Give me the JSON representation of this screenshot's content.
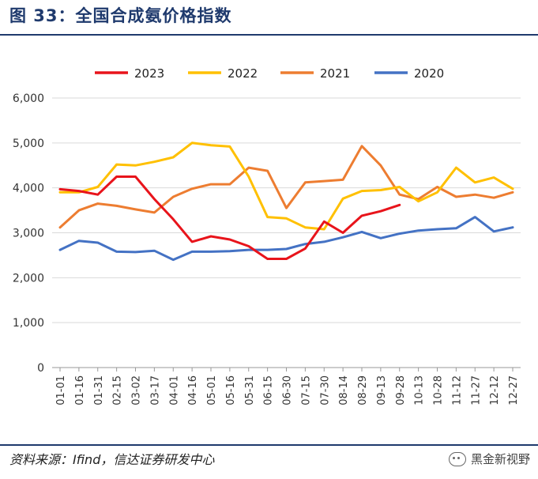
{
  "header": {
    "title": "图 33：全国合成氨价格指数"
  },
  "footer": {
    "source": "资料来源：Ifind，信达证券研发中心",
    "watermark": "黑金新视野"
  },
  "chart_data": {
    "type": "line",
    "title": "",
    "xlabel": "",
    "ylabel": "",
    "ylim": [
      0,
      6000
    ],
    "yticks": [
      0,
      1000,
      2000,
      3000,
      4000,
      5000,
      6000
    ],
    "ytick_labels": [
      "0",
      "1,000",
      "2,000",
      "3,000",
      "4,000",
      "5,000",
      "6,000"
    ],
    "categories": [
      "01-01",
      "01-16",
      "01-31",
      "02-15",
      "03-02",
      "03-17",
      "04-01",
      "04-16",
      "05-01",
      "05-16",
      "05-31",
      "06-15",
      "06-30",
      "07-15",
      "07-30",
      "08-14",
      "08-29",
      "09-13",
      "09-28",
      "10-13",
      "10-28",
      "11-12",
      "11-27",
      "12-12",
      "12-27"
    ],
    "legend_position": "top",
    "grid": "horizontal",
    "series": [
      {
        "name": "2023",
        "color": "#e8141b",
        "values": [
          3970,
          3930,
          3850,
          4250,
          4250,
          3750,
          3300,
          2800,
          2920,
          2850,
          2700,
          2420,
          2420,
          2650,
          3250,
          3000,
          3380,
          3480,
          3620,
          null,
          null,
          null,
          null,
          null,
          null
        ]
      },
      {
        "name": "2022",
        "color": "#ffc000",
        "values": [
          3900,
          3900,
          4020,
          4520,
          4500,
          4580,
          4680,
          5000,
          4950,
          4920,
          4250,
          3350,
          3320,
          3120,
          3080,
          3760,
          3930,
          3950,
          4020,
          3700,
          3900,
          4450,
          4120,
          4230,
          3980
        ]
      },
      {
        "name": "2021",
        "color": "#ed7d31",
        "values": [
          3120,
          3500,
          3650,
          3600,
          3520,
          3450,
          3800,
          3980,
          4080,
          4080,
          4450,
          4380,
          3550,
          4120,
          4150,
          4180,
          4930,
          4500,
          3850,
          3750,
          4020,
          3800,
          3850,
          3780,
          3900
        ]
      },
      {
        "name": "2020",
        "color": "#4472c4",
        "values": [
          2620,
          2820,
          2780,
          2580,
          2570,
          2600,
          2400,
          2580,
          2580,
          2590,
          2620,
          2620,
          2640,
          2750,
          2800,
          2900,
          3020,
          2880,
          2980,
          3050,
          3080,
          3100,
          3350,
          3030,
          3120
        ]
      }
    ]
  }
}
